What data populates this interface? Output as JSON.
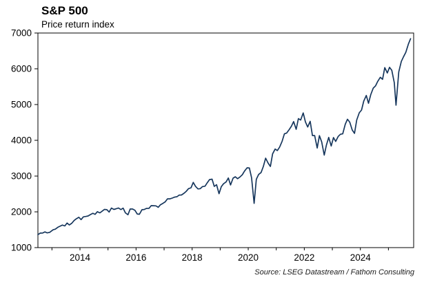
{
  "header": {
    "title": "S&P 500",
    "subtitle": "Price return index"
  },
  "source": "Source: LSEG Datastream / Fathom Consulting",
  "chart_data": {
    "type": "line",
    "title": "S&P 500",
    "subtitle": "Price return index",
    "xlabel": "",
    "ylabel": "",
    "ylim": [
      1000,
      7000
    ],
    "yticks": [
      1000,
      2000,
      3000,
      4000,
      5000,
      6000,
      7000
    ],
    "xlim": [
      2012.5,
      2025.9
    ],
    "xticks_minor": [
      2013,
      2014,
      2015,
      2016,
      2017,
      2018,
      2019,
      2020,
      2021,
      2022,
      2023,
      2024,
      2025
    ],
    "xtick_labels": [
      2014,
      2016,
      2018,
      2020,
      2022,
      2024
    ],
    "grid": false,
    "legend": "none",
    "line_color": "#16365c",
    "frame_color": "#000000",
    "series": [
      {
        "name": "S&P 500 price return index",
        "points": [
          [
            2012.5,
            1362
          ],
          [
            2012.58,
            1406
          ],
          [
            2012.67,
            1407
          ],
          [
            2012.75,
            1440
          ],
          [
            2012.83,
            1412
          ],
          [
            2012.92,
            1426
          ],
          [
            2013.04,
            1498
          ],
          [
            2013.12,
            1515
          ],
          [
            2013.21,
            1569
          ],
          [
            2013.29,
            1598
          ],
          [
            2013.37,
            1631
          ],
          [
            2013.46,
            1606
          ],
          [
            2013.54,
            1686
          ],
          [
            2013.62,
            1633
          ],
          [
            2013.71,
            1682
          ],
          [
            2013.79,
            1757
          ],
          [
            2013.87,
            1806
          ],
          [
            2013.96,
            1848
          ],
          [
            2014.04,
            1783
          ],
          [
            2014.12,
            1859
          ],
          [
            2014.21,
            1872
          ],
          [
            2014.29,
            1884
          ],
          [
            2014.37,
            1924
          ],
          [
            2014.46,
            1960
          ],
          [
            2014.54,
            1931
          ],
          [
            2014.62,
            2003
          ],
          [
            2014.71,
            1972
          ],
          [
            2014.79,
            2018
          ],
          [
            2014.87,
            2068
          ],
          [
            2014.96,
            2059
          ],
          [
            2015.04,
            1995
          ],
          [
            2015.12,
            2105
          ],
          [
            2015.21,
            2068
          ],
          [
            2015.29,
            2086
          ],
          [
            2015.37,
            2107
          ],
          [
            2015.46,
            2063
          ],
          [
            2015.54,
            2104
          ],
          [
            2015.62,
            1972
          ],
          [
            2015.71,
            1920
          ],
          [
            2015.79,
            2079
          ],
          [
            2015.87,
            2080
          ],
          [
            2015.96,
            2044
          ],
          [
            2016.04,
            1940
          ],
          [
            2016.12,
            1932
          ],
          [
            2016.21,
            2060
          ],
          [
            2016.29,
            2065
          ],
          [
            2016.37,
            2097
          ],
          [
            2016.46,
            2099
          ],
          [
            2016.54,
            2174
          ],
          [
            2016.62,
            2171
          ],
          [
            2016.71,
            2168
          ],
          [
            2016.79,
            2126
          ],
          [
            2016.87,
            2199
          ],
          [
            2016.96,
            2239
          ],
          [
            2017.04,
            2279
          ],
          [
            2017.12,
            2364
          ],
          [
            2017.21,
            2363
          ],
          [
            2017.29,
            2384
          ],
          [
            2017.37,
            2412
          ],
          [
            2017.46,
            2423
          ],
          [
            2017.54,
            2470
          ],
          [
            2017.62,
            2472
          ],
          [
            2017.71,
            2519
          ],
          [
            2017.79,
            2575
          ],
          [
            2017.87,
            2648
          ],
          [
            2017.96,
            2674
          ],
          [
            2018.04,
            2824
          ],
          [
            2018.12,
            2714
          ],
          [
            2018.21,
            2641
          ],
          [
            2018.29,
            2648
          ],
          [
            2018.37,
            2705
          ],
          [
            2018.46,
            2718
          ],
          [
            2018.54,
            2816
          ],
          [
            2018.62,
            2902
          ],
          [
            2018.71,
            2914
          ],
          [
            2018.79,
            2712
          ],
          [
            2018.87,
            2760
          ],
          [
            2018.96,
            2507
          ],
          [
            2019.04,
            2704
          ],
          [
            2019.12,
            2785
          ],
          [
            2019.21,
            2834
          ],
          [
            2019.29,
            2946
          ],
          [
            2019.37,
            2752
          ],
          [
            2019.46,
            2942
          ],
          [
            2019.54,
            2980
          ],
          [
            2019.62,
            2926
          ],
          [
            2019.71,
            2977
          ],
          [
            2019.79,
            3038
          ],
          [
            2019.87,
            3141
          ],
          [
            2019.96,
            3231
          ],
          [
            2020.04,
            3226
          ],
          [
            2020.12,
            2954
          ],
          [
            2020.21,
            2237
          ],
          [
            2020.29,
            2912
          ],
          [
            2020.37,
            3044
          ],
          [
            2020.46,
            3100
          ],
          [
            2020.54,
            3271
          ],
          [
            2020.62,
            3500
          ],
          [
            2020.71,
            3363
          ],
          [
            2020.79,
            3270
          ],
          [
            2020.87,
            3622
          ],
          [
            2020.96,
            3756
          ],
          [
            2021.04,
            3714
          ],
          [
            2021.12,
            3811
          ],
          [
            2021.21,
            3973
          ],
          [
            2021.29,
            4181
          ],
          [
            2021.37,
            4204
          ],
          [
            2021.46,
            4298
          ],
          [
            2021.54,
            4395
          ],
          [
            2021.62,
            4523
          ],
          [
            2021.71,
            4308
          ],
          [
            2021.79,
            4605
          ],
          [
            2021.87,
            4567
          ],
          [
            2021.96,
            4766
          ],
          [
            2022.04,
            4516
          ],
          [
            2022.12,
            4374
          ],
          [
            2022.21,
            4530
          ],
          [
            2022.29,
            4132
          ],
          [
            2022.37,
            4132
          ],
          [
            2022.46,
            3785
          ],
          [
            2022.54,
            4130
          ],
          [
            2022.62,
            3955
          ],
          [
            2022.71,
            3586
          ],
          [
            2022.79,
            3872
          ],
          [
            2022.87,
            4080
          ],
          [
            2022.96,
            3840
          ],
          [
            2023.04,
            4077
          ],
          [
            2023.12,
            3970
          ],
          [
            2023.21,
            4109
          ],
          [
            2023.29,
            4169
          ],
          [
            2023.37,
            4180
          ],
          [
            2023.46,
            4450
          ],
          [
            2023.54,
            4589
          ],
          [
            2023.62,
            4508
          ],
          [
            2023.71,
            4288
          ],
          [
            2023.79,
            4194
          ],
          [
            2023.87,
            4568
          ],
          [
            2023.96,
            4770
          ],
          [
            2024.04,
            4846
          ],
          [
            2024.12,
            5096
          ],
          [
            2024.21,
            5254
          ],
          [
            2024.29,
            5036
          ],
          [
            2024.37,
            5278
          ],
          [
            2024.46,
            5460
          ],
          [
            2024.54,
            5522
          ],
          [
            2024.62,
            5648
          ],
          [
            2024.71,
            5762
          ],
          [
            2024.79,
            5705
          ],
          [
            2024.87,
            6032
          ],
          [
            2024.96,
            5882
          ],
          [
            2025.04,
            6041
          ],
          [
            2025.12,
            5955
          ],
          [
            2025.21,
            5612
          ],
          [
            2025.27,
            4983
          ],
          [
            2025.37,
            5912
          ],
          [
            2025.46,
            6205
          ],
          [
            2025.54,
            6340
          ],
          [
            2025.62,
            6460
          ],
          [
            2025.71,
            6688
          ],
          [
            2025.79,
            6840
          ]
        ]
      }
    ]
  }
}
